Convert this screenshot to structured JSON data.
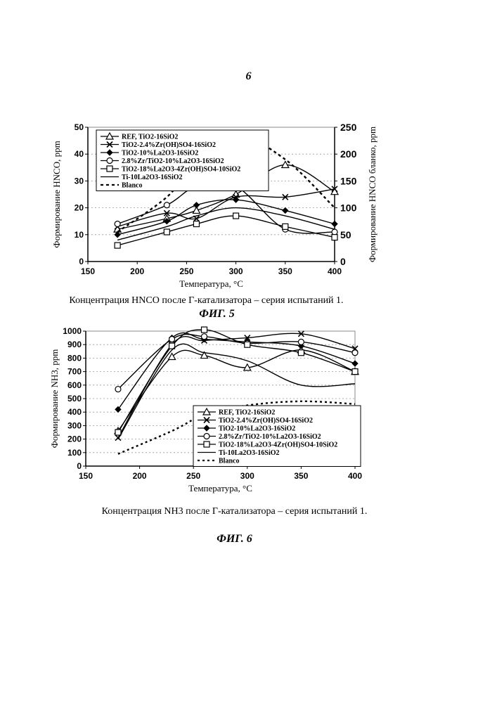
{
  "page_number": "6",
  "chart_data": [
    {
      "type": "line",
      "caption": "Концентрация HNCO после Г-катализатора – серия испытаний 1.",
      "figure_label": "ФИГ. 5",
      "xlabel": "Температура, °C",
      "ylabel": "Формирование HNCO, ppm",
      "y2label": "Формирование HNCO бланко, ppm",
      "xlim": [
        150,
        400
      ],
      "ylim": [
        0,
        50
      ],
      "y2lim": [
        0,
        250
      ],
      "xticks": [
        "150",
        "200",
        "250",
        "300",
        "350",
        "400"
      ],
      "yticks": [
        "0",
        "10",
        "20",
        "30",
        "40",
        "50"
      ],
      "y2ticks": [
        "0",
        "50",
        "100",
        "150",
        "200",
        "250"
      ],
      "legend_position": "top-left",
      "series": [
        {
          "name": "REF, TiO2-16SiO2",
          "marker": "triangle",
          "dash": "",
          "axis": "y",
          "x": [
            180,
            230,
            260,
            300,
            350,
            400
          ],
          "y": [
            12,
            16,
            19,
            25,
            36,
            26
          ]
        },
        {
          "name": "TiO2-2.4%Zr(OH)SO4-16SiO2",
          "marker": "x",
          "dash": "",
          "axis": "y",
          "x": [
            180,
            230,
            260,
            300,
            350,
            400
          ],
          "y": [
            13,
            18,
            16,
            24,
            24,
            27
          ]
        },
        {
          "name": "TiO2-10%La2O3-16SiO2",
          "marker": "diamond",
          "dash": "",
          "axis": "y",
          "x": [
            180,
            230,
            260,
            300,
            350,
            400
          ],
          "y": [
            10,
            15,
            21,
            23,
            19,
            14
          ]
        },
        {
          "name": "2.8%Zr/TiO2-10%La2O3-16SiO2",
          "marker": "circle",
          "dash": "",
          "axis": "y",
          "x": [
            180,
            230,
            260,
            300,
            350,
            400
          ],
          "y": [
            14,
            21,
            28,
            28,
            12,
            11
          ]
        },
        {
          "name": "TiO2-18%La2O3-4Zr(OH)SO4-10SiO2",
          "marker": "square",
          "dash": "",
          "axis": "y",
          "x": [
            180,
            230,
            260,
            300,
            350,
            400
          ],
          "y": [
            6,
            11,
            14,
            17,
            13,
            9
          ]
        },
        {
          "name": "Ti-10La2O3-16SiO2",
          "marker": "none",
          "dash": "",
          "axis": "y",
          "x": [
            180,
            230,
            260,
            300,
            350,
            400
          ],
          "y": [
            8,
            13,
            17,
            20,
            17,
            12
          ]
        },
        {
          "name": "Blanco",
          "marker": "none",
          "dash": "4,4",
          "axis": "y2",
          "x": [
            180,
            230,
            260,
            300,
            350,
            400
          ],
          "y": [
            55,
            120,
            185,
            235,
            190,
            100
          ]
        }
      ]
    },
    {
      "type": "line",
      "caption": "Концентрация NH3 после Г-катализатора – серия испытаний 1.",
      "figure_label": "ФИГ. 6",
      "xlabel": "Температура, °C",
      "ylabel": "Формирование NH3, ppm",
      "xlim": [
        150,
        400
      ],
      "ylim": [
        0,
        1000
      ],
      "xticks": [
        "150",
        "200",
        "250",
        "300",
        "350",
        "400"
      ],
      "yticks": [
        "0",
        "100",
        "200",
        "300",
        "400",
        "500",
        "600",
        "700",
        "800",
        "900",
        "1000"
      ],
      "legend_position": "bottom-right",
      "series": [
        {
          "name": "REF, TiO2-16SiO2",
          "marker": "triangle",
          "dash": "",
          "axis": "y",
          "x": [
            180,
            230,
            260,
            300,
            350,
            400
          ],
          "y": [
            260,
            810,
            820,
            730,
            860,
            700
          ]
        },
        {
          "name": "TiO2-2.4%Zr(OH)SO4-16SiO2",
          "marker": "x",
          "dash": "",
          "axis": "y",
          "x": [
            180,
            230,
            260,
            300,
            350,
            400
          ],
          "y": [
            210,
            900,
            930,
            950,
            980,
            870
          ]
        },
        {
          "name": "TiO2-10%La2O3-16SiO2",
          "marker": "diamond",
          "dash": "",
          "axis": "y",
          "x": [
            180,
            230,
            260,
            300,
            350,
            400
          ],
          "y": [
            420,
            950,
            940,
            920,
            890,
            760
          ]
        },
        {
          "name": "2.8%Zr/TiO2-10%La2O3-16SiO2",
          "marker": "circle",
          "dash": "",
          "axis": "y",
          "x": [
            180,
            230,
            260,
            300,
            350,
            400
          ],
          "y": [
            570,
            940,
            960,
            910,
            920,
            840
          ]
        },
        {
          "name": "TiO2-18%La2O3-4Zr(OH)SO4-10SiO2",
          "marker": "square",
          "dash": "",
          "axis": "y",
          "x": [
            180,
            230,
            260,
            300,
            350,
            400
          ],
          "y": [
            250,
            890,
            1010,
            900,
            840,
            700
          ]
        },
        {
          "name": "Ti-10La2O3-16SiO2",
          "marker": "none",
          "dash": "",
          "axis": "y",
          "x": [
            180,
            230,
            260,
            300,
            350,
            400
          ],
          "y": [
            200,
            860,
            840,
            780,
            600,
            610
          ]
        },
        {
          "name": "Blanco",
          "marker": "none",
          "dash": "3,4",
          "axis": "y",
          "x": [
            180,
            230,
            260,
            300,
            350,
            400
          ],
          "y": [
            90,
            260,
            380,
            450,
            480,
            460
          ]
        }
      ]
    }
  ]
}
